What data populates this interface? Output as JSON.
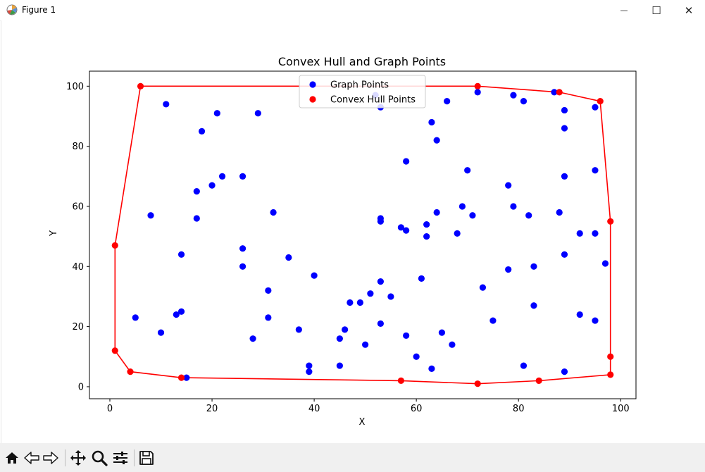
{
  "window": {
    "title": "Figure 1",
    "minimize_glyph": "—",
    "maximize_glyph": "☐",
    "close_glyph": "✕"
  },
  "toolbar": {
    "buttons": [
      "home-icon",
      "back-icon",
      "forward-icon",
      "pan-icon",
      "zoom-icon",
      "configure-subplots-icon",
      "save-icon"
    ]
  },
  "colors": {
    "graph_points": "#0000ff",
    "hull_points": "#ff0000",
    "hull_line": "#ff0000"
  },
  "chart_data": {
    "type": "scatter",
    "title": "Convex Hull and Graph Points",
    "xlabel": "X",
    "ylabel": "Y",
    "xlim": [
      -4,
      103
    ],
    "ylim": [
      -4.0,
      105.0
    ],
    "xticks": [
      0,
      20,
      40,
      60,
      80,
      100
    ],
    "yticks": [
      0,
      20,
      40,
      60,
      80,
      100
    ],
    "grid": false,
    "legend_position": "upper center",
    "series": [
      {
        "name": "Graph Points",
        "color": "#0000ff",
        "points": [
          [
            5,
            23
          ],
          [
            8,
            57
          ],
          [
            10,
            18
          ],
          [
            11,
            94
          ],
          [
            13,
            24
          ],
          [
            14,
            44
          ],
          [
            14,
            25
          ],
          [
            15,
            3
          ],
          [
            17,
            65
          ],
          [
            17,
            56
          ],
          [
            18,
            85
          ],
          [
            20,
            67
          ],
          [
            21,
            91
          ],
          [
            22,
            70
          ],
          [
            26,
            70
          ],
          [
            26,
            46
          ],
          [
            26,
            40
          ],
          [
            28,
            16
          ],
          [
            29,
            91
          ],
          [
            31,
            32
          ],
          [
            31,
            23
          ],
          [
            32,
            58
          ],
          [
            35,
            43
          ],
          [
            37,
            19
          ],
          [
            39,
            7
          ],
          [
            39,
            5
          ],
          [
            40,
            37
          ],
          [
            45,
            16
          ],
          [
            45,
            7
          ],
          [
            46,
            19
          ],
          [
            47,
            28
          ],
          [
            49,
            28
          ],
          [
            50,
            14
          ],
          [
            51,
            31
          ],
          [
            52,
            97
          ],
          [
            53,
            93
          ],
          [
            53,
            56
          ],
          [
            53,
            55
          ],
          [
            53,
            35
          ],
          [
            53,
            21
          ],
          [
            55,
            30
          ],
          [
            57,
            53
          ],
          [
            58,
            52
          ],
          [
            58,
            75
          ],
          [
            58,
            17
          ],
          [
            60,
            10
          ],
          [
            61,
            36
          ],
          [
            62,
            54
          ],
          [
            62,
            50
          ],
          [
            63,
            88
          ],
          [
            63,
            6
          ],
          [
            64,
            82
          ],
          [
            64,
            58
          ],
          [
            65,
            18
          ],
          [
            66,
            95
          ],
          [
            67,
            14
          ],
          [
            68,
            51
          ],
          [
            69,
            60
          ],
          [
            70,
            72
          ],
          [
            71,
            57
          ],
          [
            72,
            98
          ],
          [
            73,
            33
          ],
          [
            75,
            22
          ],
          [
            78,
            67
          ],
          [
            78,
            39
          ],
          [
            79,
            97
          ],
          [
            79,
            60
          ],
          [
            81,
            95
          ],
          [
            81,
            7
          ],
          [
            82,
            57
          ],
          [
            83,
            40
          ],
          [
            83,
            27
          ],
          [
            87,
            98
          ],
          [
            88,
            58
          ],
          [
            89,
            92
          ],
          [
            89,
            86
          ],
          [
            89,
            70
          ],
          [
            89,
            44
          ],
          [
            89,
            5
          ],
          [
            92,
            51
          ],
          [
            92,
            24
          ],
          [
            95,
            93
          ],
          [
            95,
            72
          ],
          [
            95,
            51
          ],
          [
            95,
            22
          ],
          [
            97,
            41
          ]
        ]
      },
      {
        "name": "Convex Hull Points",
        "color": "#ff0000",
        "points": [
          [
            6,
            100
          ],
          [
            72,
            100
          ],
          [
            88,
            98
          ],
          [
            96,
            95
          ],
          [
            98,
            55
          ],
          [
            98,
            10
          ],
          [
            98,
            4
          ],
          [
            84,
            2
          ],
          [
            72,
            1
          ],
          [
            57,
            2
          ],
          [
            14,
            3
          ],
          [
            4,
            5
          ],
          [
            1,
            12
          ],
          [
            1,
            47
          ]
        ]
      }
    ]
  }
}
